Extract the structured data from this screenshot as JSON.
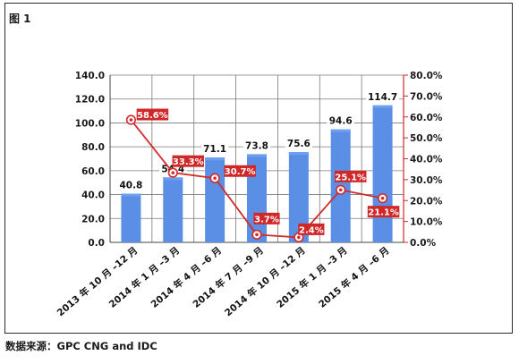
{
  "figure_label": "图 1",
  "source_note": "数据来源：GPC CNG and IDC",
  "colors": {
    "bar": "#5b8fe6",
    "bar_top": "#6fa0f0",
    "line": "#d32a2a",
    "label_box": "#d02828",
    "grid": "#7a7a7a"
  },
  "chart_data": {
    "type": "bar",
    "categories": [
      "2013 年 10 月 –12 月",
      "2014 年 1 月 –3 月",
      "2014 年 4 月 –6 月",
      "2014 年 7 月 –9 月",
      "2014 年 10 月 –12 月",
      "2015 年 1 月 –3 月",
      "2015 年 4 月 –6 月"
    ],
    "series": [
      {
        "type": "bar",
        "axis": "left",
        "values": [
          40.8,
          54.4,
          71.1,
          73.8,
          75.6,
          94.6,
          114.7
        ],
        "labels": [
          "40.8",
          "54.4",
          "71.1",
          "73.8",
          "75.6",
          "94.6",
          "114.7"
        ]
      },
      {
        "type": "line",
        "axis": "right",
        "values": [
          58.6,
          33.3,
          30.7,
          3.7,
          2.4,
          25.1,
          21.1
        ],
        "labels": [
          "58.6%",
          "33.3%",
          "30.7%",
          "3.7%",
          "2.4%",
          "25.1%",
          "21.1%"
        ]
      }
    ],
    "ylim_left": [
      0,
      140
    ],
    "yticks_left": [
      "0.0",
      "20.0",
      "40.0",
      "60.0",
      "80.0",
      "100.0",
      "120.0",
      "140.0"
    ],
    "ylim_right": [
      0,
      80
    ],
    "yticks_right": [
      "0.0%",
      "10.0%",
      "20.0%",
      "30.0%",
      "40.0%",
      "50.0%",
      "60.0%",
      "70.0%",
      "80.0%"
    ],
    "grid": true
  }
}
